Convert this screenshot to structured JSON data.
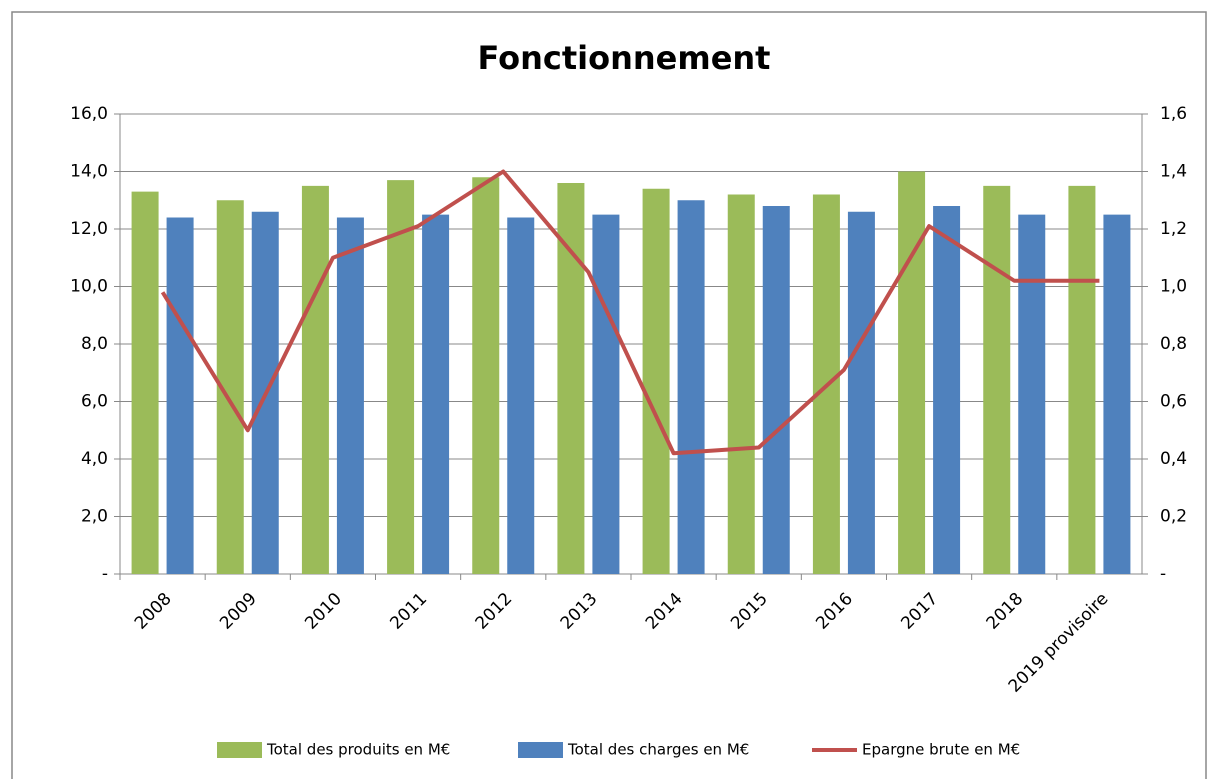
{
  "chart_data": {
    "type": "bar-line",
    "title": "Fonctionnement",
    "categories": [
      "2008",
      "2009",
      "2010",
      "2011",
      "2012",
      "2013",
      "2014",
      "2015",
      "2016",
      "2017",
      "2018",
      "2019 provisoire"
    ],
    "series": [
      {
        "name": "Total des produits en M€",
        "color": "#9bbb59",
        "type": "bar",
        "values": [
          13.3,
          13.0,
          13.5,
          13.7,
          13.8,
          13.6,
          13.4,
          13.2,
          13.2,
          14.0,
          13.5,
          13.5
        ]
      },
      {
        "name": "Total des charges en M€",
        "color": "#4f81bd",
        "type": "bar",
        "values": [
          12.4,
          12.6,
          12.4,
          12.5,
          12.4,
          12.5,
          13.0,
          12.8,
          12.6,
          12.8,
          12.5,
          12.5
        ]
      },
      {
        "name": "Epargne brute en M€",
        "color": "#c0504d",
        "type": "line",
        "axis": "y2",
        "values": [
          0.98,
          0.5,
          1.1,
          1.21,
          1.4,
          1.05,
          0.42,
          0.44,
          0.71,
          1.21,
          1.02,
          1.02
        ]
      }
    ],
    "ylim": [
      0,
      16
    ],
    "yticks": [
      {
        "value": 0,
        "label": "-"
      },
      {
        "value": 2,
        "label": "2,0"
      },
      {
        "value": 4,
        "label": "4,0"
      },
      {
        "value": 6,
        "label": "6,0"
      },
      {
        "value": 8,
        "label": "8,0"
      },
      {
        "value": 10,
        "label": "10,0"
      },
      {
        "value": 12,
        "label": "12,0"
      },
      {
        "value": 14,
        "label": "14,0"
      },
      {
        "value": 16,
        "label": "16,0"
      }
    ],
    "y2lim": [
      0,
      1.6
    ],
    "y2ticks": [
      {
        "value": 0,
        "label": "-"
      },
      {
        "value": 0.2,
        "label": "0,2"
      },
      {
        "value": 0.4,
        "label": "0,4"
      },
      {
        "value": 0.6,
        "label": "0,6"
      },
      {
        "value": 0.8,
        "label": "0,8"
      },
      {
        "value": 1.0,
        "label": "1,0"
      },
      {
        "value": 1.2,
        "label": "1,2"
      },
      {
        "value": 1.4,
        "label": "1,4"
      },
      {
        "value": 1.6,
        "label": "1,6"
      }
    ],
    "grid": true,
    "legend": "bottom"
  }
}
